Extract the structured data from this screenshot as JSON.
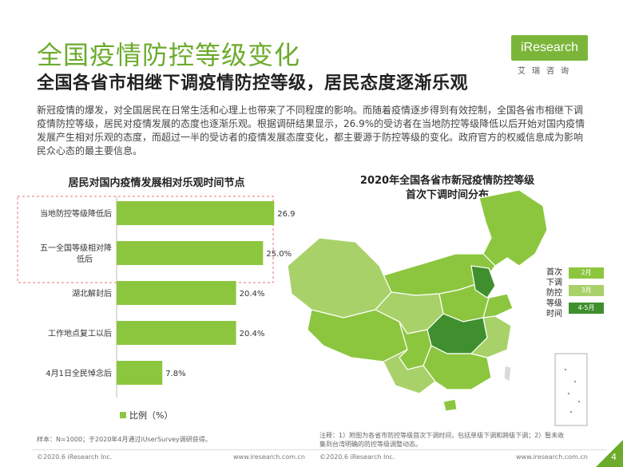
{
  "header": {
    "title": "全国疫情防控等级变化",
    "subtitle": "全国各省市相继下调疫情防控等级，居民态度逐渐乐观",
    "logo_text": "iResearch",
    "logo_sub": "艾瑞咨询"
  },
  "intro_text": "新冠疫情的爆发，对全国居民在日常生活和心理上也带来了不同程度的影响。而随着疫情逐步得到有效控制，全国各省市相继下调疫情防控等级，居民对疫情发展的态度也逐渐乐观。根据调研结果显示，26.9%的受访者在当地防控等级降低以后开始对国内疫情发展产生相对乐观的态度，而超过一半的受访者的疫情发展态度变化，都主要源于防控等级的变化。政府官方的权威信息成为影响民众心态的最主要信息。",
  "chart_data": [
    {
      "type": "bar",
      "orientation": "horizontal",
      "title": "居民对国内疫情发展相对乐观时间节点",
      "categories": [
        "当地防控等级降低后",
        "五一全国等级相对降低后",
        "湖北解封后",
        "工作地点复工以后",
        "4月1日全民悼念后"
      ],
      "values": [
        26.9,
        25.0,
        20.4,
        20.4,
        7.8
      ],
      "value_labels": [
        "26.9%",
        "25.0%",
        "20.4%",
        "20.4%",
        "7.8%"
      ],
      "legend": "比例（%）",
      "highlighted_categories": [
        "当地防控等级降低后",
        "五一全国等级相对降低后"
      ],
      "bar_color": "#8cc63f",
      "xlim": [
        0,
        30
      ]
    },
    {
      "type": "map",
      "title": "2020年全国各省市新冠疫情防控等级首次下调时间分布",
      "legend_title": "首次下调防控等级时间",
      "legend": [
        {
          "label": "2月",
          "color": "#8cc63f"
        },
        {
          "label": "3月",
          "color": "#a8d16a"
        },
        {
          "label": "4-5月",
          "color": "#3f8f2e"
        }
      ]
    }
  ],
  "left_chart_title": "居民对国内疫情发展相对乐观时间节点",
  "right_chart_title_line1": "2020年全国各省市新冠疫情防控等级",
  "right_chart_title_line2": "首次下调时间分布",
  "map_legend_title": "首次下调防控等级时间",
  "legend_label": "比例（%）",
  "sample_text": "样本：N=1000；于2020年4月通过iUserSurvey调研获得。",
  "note_text": "注释：1）附图为各省市防控等级首次下调时间，包括单级下调和跨级下调；2）暂未收集到台湾明确的防控等级调整动态。",
  "footer": {
    "left_copyright": "©2020.6 iResearch Inc.",
    "left_url": "www.iresearch.com.cn",
    "right_copyright": "©2020.6 iResearch Inc.",
    "right_url": "www.iresearch.com.cn",
    "page": "4"
  },
  "colors": {
    "accent": "#6cab2c",
    "bar": "#8cc63f",
    "highlight_border": "#e57373"
  }
}
